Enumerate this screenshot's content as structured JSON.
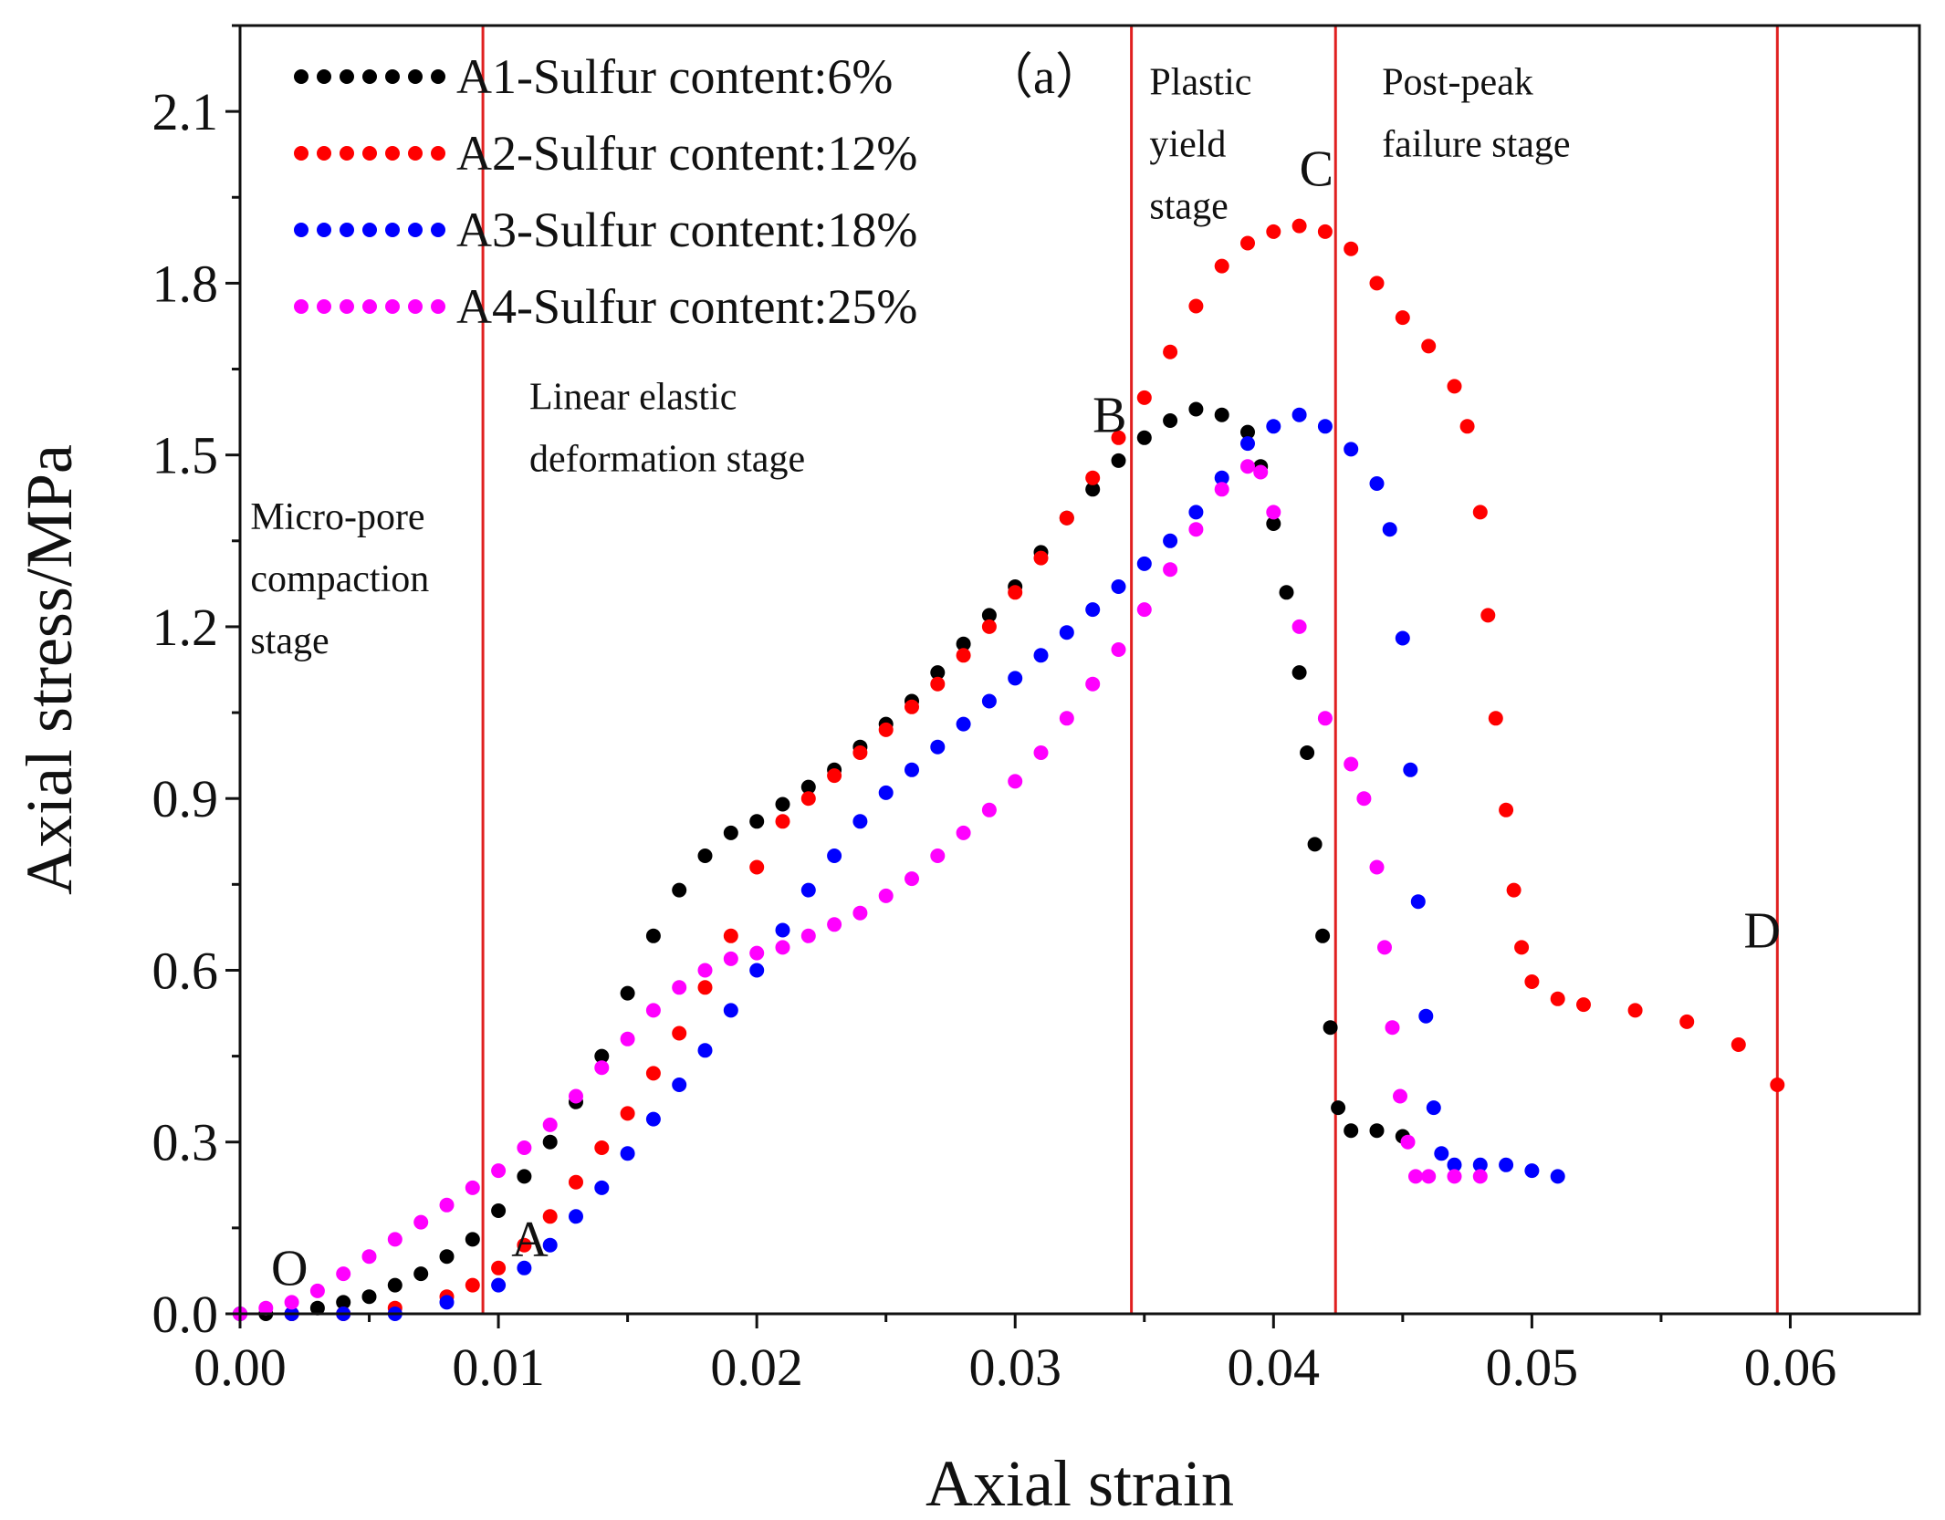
{
  "chart_data": {
    "type": "scatter",
    "title": "",
    "panel_label": "（a）",
    "xlabel": "Axial strain",
    "ylabel": "Axial stress/MPa",
    "xlim": [
      0,
      0.065
    ],
    "ylim": [
      0,
      2.25
    ],
    "x_ticks": [
      0,
      0.01,
      0.02,
      0.03,
      0.04,
      0.05,
      0.06
    ],
    "x_tick_labels": [
      "0.00",
      "0.01",
      "0.02",
      "0.03",
      "0.04",
      "0.05",
      "0.06"
    ],
    "y_ticks": [
      0,
      0.3,
      0.6,
      0.9,
      1.2,
      1.5,
      1.8,
      2.1
    ],
    "y_tick_labels": [
      "0.0",
      "0.3",
      "0.6",
      "0.9",
      "1.2",
      "1.5",
      "1.8",
      "2.1"
    ],
    "grid": false,
    "legend_position": "top-left",
    "stage_boundaries": [
      0.0094,
      0.0345,
      0.0424,
      0.0595
    ],
    "stage_boundary_color": "#e02020",
    "stage_labels": [
      {
        "lines": [
          "Micro-pore",
          "compaction",
          "stage"
        ],
        "x": 0.0004,
        "y": 1.37
      },
      {
        "lines": [
          "Linear elastic",
          "deformation stage"
        ],
        "x": 0.0112,
        "y": 1.58
      },
      {
        "lines": [
          "Plastic",
          "yield",
          "stage"
        ],
        "x": 0.0352,
        "y": 2.13
      },
      {
        "lines": [
          "Post-peak",
          "failure stage"
        ],
        "x": 0.0442,
        "y": 2.13
      }
    ],
    "point_labels": [
      {
        "text": "O",
        "x": 0.0012,
        "y": 0.05
      },
      {
        "text": "A",
        "x": 0.0105,
        "y": 0.1
      },
      {
        "text": "B",
        "x": 0.033,
        "y": 1.54
      },
      {
        "text": "C",
        "x": 0.041,
        "y": 1.97
      },
      {
        "text": "D",
        "x": 0.0582,
        "y": 0.64
      }
    ],
    "series": [
      {
        "name": "A1-Sulfur content:6%",
        "color": "#000000",
        "x": [
          0.0,
          0.001,
          0.002,
          0.003,
          0.004,
          0.005,
          0.006,
          0.007,
          0.008,
          0.009,
          0.01,
          0.011,
          0.012,
          0.013,
          0.014,
          0.015,
          0.016,
          0.017,
          0.018,
          0.019,
          0.02,
          0.021,
          0.022,
          0.023,
          0.024,
          0.025,
          0.026,
          0.027,
          0.028,
          0.029,
          0.03,
          0.031,
          0.032,
          0.033,
          0.034,
          0.035,
          0.036,
          0.037,
          0.038,
          0.039,
          0.0395,
          0.04,
          0.0405,
          0.041,
          0.0413,
          0.0416,
          0.0419,
          0.0422,
          0.0425,
          0.043,
          0.044,
          0.045
        ],
        "y": [
          0.0,
          0.0,
          0.0,
          0.01,
          0.02,
          0.03,
          0.05,
          0.07,
          0.1,
          0.13,
          0.18,
          0.24,
          0.3,
          0.37,
          0.45,
          0.56,
          0.66,
          0.74,
          0.8,
          0.84,
          0.86,
          0.89,
          0.92,
          0.95,
          0.99,
          1.03,
          1.07,
          1.12,
          1.17,
          1.22,
          1.27,
          1.33,
          1.39,
          1.44,
          1.49,
          1.53,
          1.56,
          1.58,
          1.57,
          1.54,
          1.48,
          1.38,
          1.26,
          1.12,
          0.98,
          0.82,
          0.66,
          0.5,
          0.36,
          0.32,
          0.32,
          0.31
        ]
      },
      {
        "name": "A2-Sulfur content:12%",
        "color": "#ff0000",
        "x": [
          0.0,
          0.002,
          0.004,
          0.006,
          0.008,
          0.009,
          0.01,
          0.011,
          0.012,
          0.013,
          0.014,
          0.015,
          0.016,
          0.017,
          0.018,
          0.019,
          0.02,
          0.021,
          0.022,
          0.023,
          0.024,
          0.025,
          0.026,
          0.027,
          0.028,
          0.029,
          0.03,
          0.031,
          0.032,
          0.033,
          0.034,
          0.035,
          0.036,
          0.037,
          0.038,
          0.039,
          0.04,
          0.041,
          0.042,
          0.043,
          0.044,
          0.045,
          0.046,
          0.047,
          0.0475,
          0.048,
          0.0483,
          0.0486,
          0.049,
          0.0493,
          0.0496,
          0.05,
          0.051,
          0.052,
          0.054,
          0.056,
          0.058,
          0.0595
        ],
        "y": [
          0.0,
          0.0,
          0.0,
          0.01,
          0.03,
          0.05,
          0.08,
          0.12,
          0.17,
          0.23,
          0.29,
          0.35,
          0.42,
          0.49,
          0.57,
          0.66,
          0.78,
          0.86,
          0.9,
          0.94,
          0.98,
          1.02,
          1.06,
          1.1,
          1.15,
          1.2,
          1.26,
          1.32,
          1.39,
          1.46,
          1.53,
          1.6,
          1.68,
          1.76,
          1.83,
          1.87,
          1.89,
          1.9,
          1.89,
          1.86,
          1.8,
          1.74,
          1.69,
          1.62,
          1.55,
          1.4,
          1.22,
          1.04,
          0.88,
          0.74,
          0.64,
          0.58,
          0.55,
          0.54,
          0.53,
          0.51,
          0.47,
          0.4
        ]
      },
      {
        "name": "A3-Sulfur content:18%",
        "color": "#0000ff",
        "x": [
          0.0,
          0.002,
          0.004,
          0.006,
          0.008,
          0.01,
          0.011,
          0.012,
          0.013,
          0.014,
          0.015,
          0.016,
          0.017,
          0.018,
          0.019,
          0.02,
          0.021,
          0.022,
          0.023,
          0.024,
          0.025,
          0.026,
          0.027,
          0.028,
          0.029,
          0.03,
          0.031,
          0.032,
          0.033,
          0.034,
          0.035,
          0.036,
          0.037,
          0.038,
          0.039,
          0.04,
          0.041,
          0.042,
          0.043,
          0.044,
          0.0445,
          0.045,
          0.0453,
          0.0456,
          0.0459,
          0.0462,
          0.0465,
          0.047,
          0.048,
          0.049,
          0.05,
          0.051
        ],
        "y": [
          0.0,
          0.0,
          0.0,
          0.0,
          0.02,
          0.05,
          0.08,
          0.12,
          0.17,
          0.22,
          0.28,
          0.34,
          0.4,
          0.46,
          0.53,
          0.6,
          0.67,
          0.74,
          0.8,
          0.86,
          0.91,
          0.95,
          0.99,
          1.03,
          1.07,
          1.11,
          1.15,
          1.19,
          1.23,
          1.27,
          1.31,
          1.35,
          1.4,
          1.46,
          1.52,
          1.55,
          1.57,
          1.55,
          1.51,
          1.45,
          1.37,
          1.18,
          0.95,
          0.72,
          0.52,
          0.36,
          0.28,
          0.26,
          0.26,
          0.26,
          0.25,
          0.24
        ]
      },
      {
        "name": "A4-Sulfur content:25%",
        "color": "#ff00ff",
        "x": [
          0.0,
          0.001,
          0.002,
          0.003,
          0.004,
          0.005,
          0.006,
          0.007,
          0.008,
          0.009,
          0.01,
          0.011,
          0.012,
          0.013,
          0.014,
          0.015,
          0.016,
          0.017,
          0.018,
          0.019,
          0.02,
          0.021,
          0.022,
          0.023,
          0.024,
          0.025,
          0.026,
          0.027,
          0.028,
          0.029,
          0.03,
          0.031,
          0.032,
          0.033,
          0.034,
          0.035,
          0.036,
          0.037,
          0.038,
          0.039,
          0.0395,
          0.04,
          0.041,
          0.042,
          0.043,
          0.0435,
          0.044,
          0.0443,
          0.0446,
          0.0449,
          0.0452,
          0.0455,
          0.046,
          0.047,
          0.048
        ],
        "y": [
          0.0,
          0.01,
          0.02,
          0.04,
          0.07,
          0.1,
          0.13,
          0.16,
          0.19,
          0.22,
          0.25,
          0.29,
          0.33,
          0.38,
          0.43,
          0.48,
          0.53,
          0.57,
          0.6,
          0.62,
          0.63,
          0.64,
          0.66,
          0.68,
          0.7,
          0.73,
          0.76,
          0.8,
          0.84,
          0.88,
          0.93,
          0.98,
          1.04,
          1.1,
          1.16,
          1.23,
          1.3,
          1.37,
          1.44,
          1.48,
          1.47,
          1.4,
          1.2,
          1.04,
          0.96,
          0.9,
          0.78,
          0.64,
          0.5,
          0.38,
          0.3,
          0.24,
          0.24,
          0.24,
          0.24
        ]
      }
    ]
  }
}
